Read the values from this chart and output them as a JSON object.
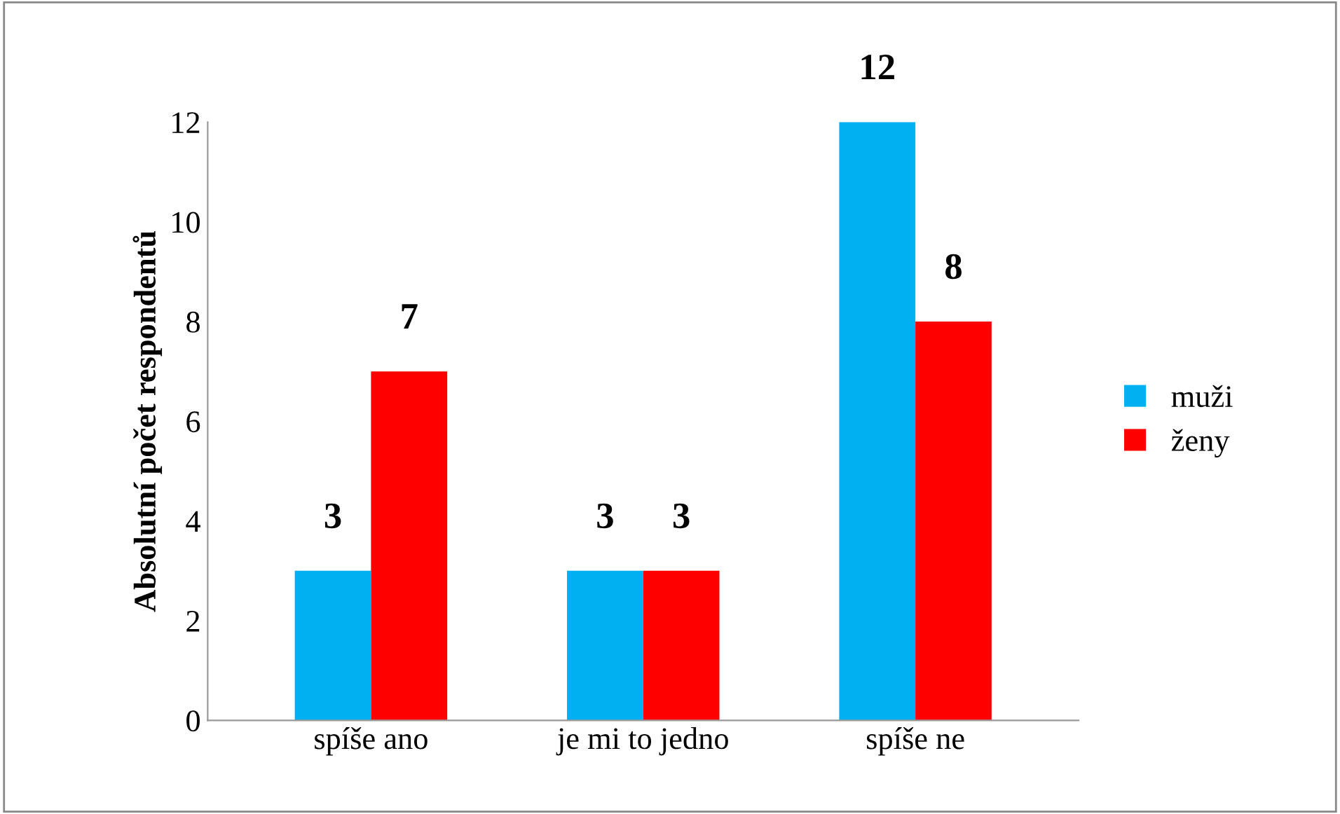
{
  "chart_data": {
    "type": "bar",
    "ylabel": "Absolutní počet respondentů",
    "categories": [
      "spíše ano",
      "je mi to jedno",
      "spíše ne"
    ],
    "series": [
      {
        "name": "muži",
        "color": "#00b0f0",
        "values": [
          3,
          3,
          12
        ]
      },
      {
        "name": "ženy",
        "color": "#ff0000",
        "values": [
          7,
          3,
          8
        ]
      }
    ],
    "ylim": [
      0,
      12
    ],
    "yticks": [
      0,
      2,
      4,
      6,
      8,
      10,
      12
    ],
    "grid": false,
    "legend": "right",
    "data_labels": true
  }
}
